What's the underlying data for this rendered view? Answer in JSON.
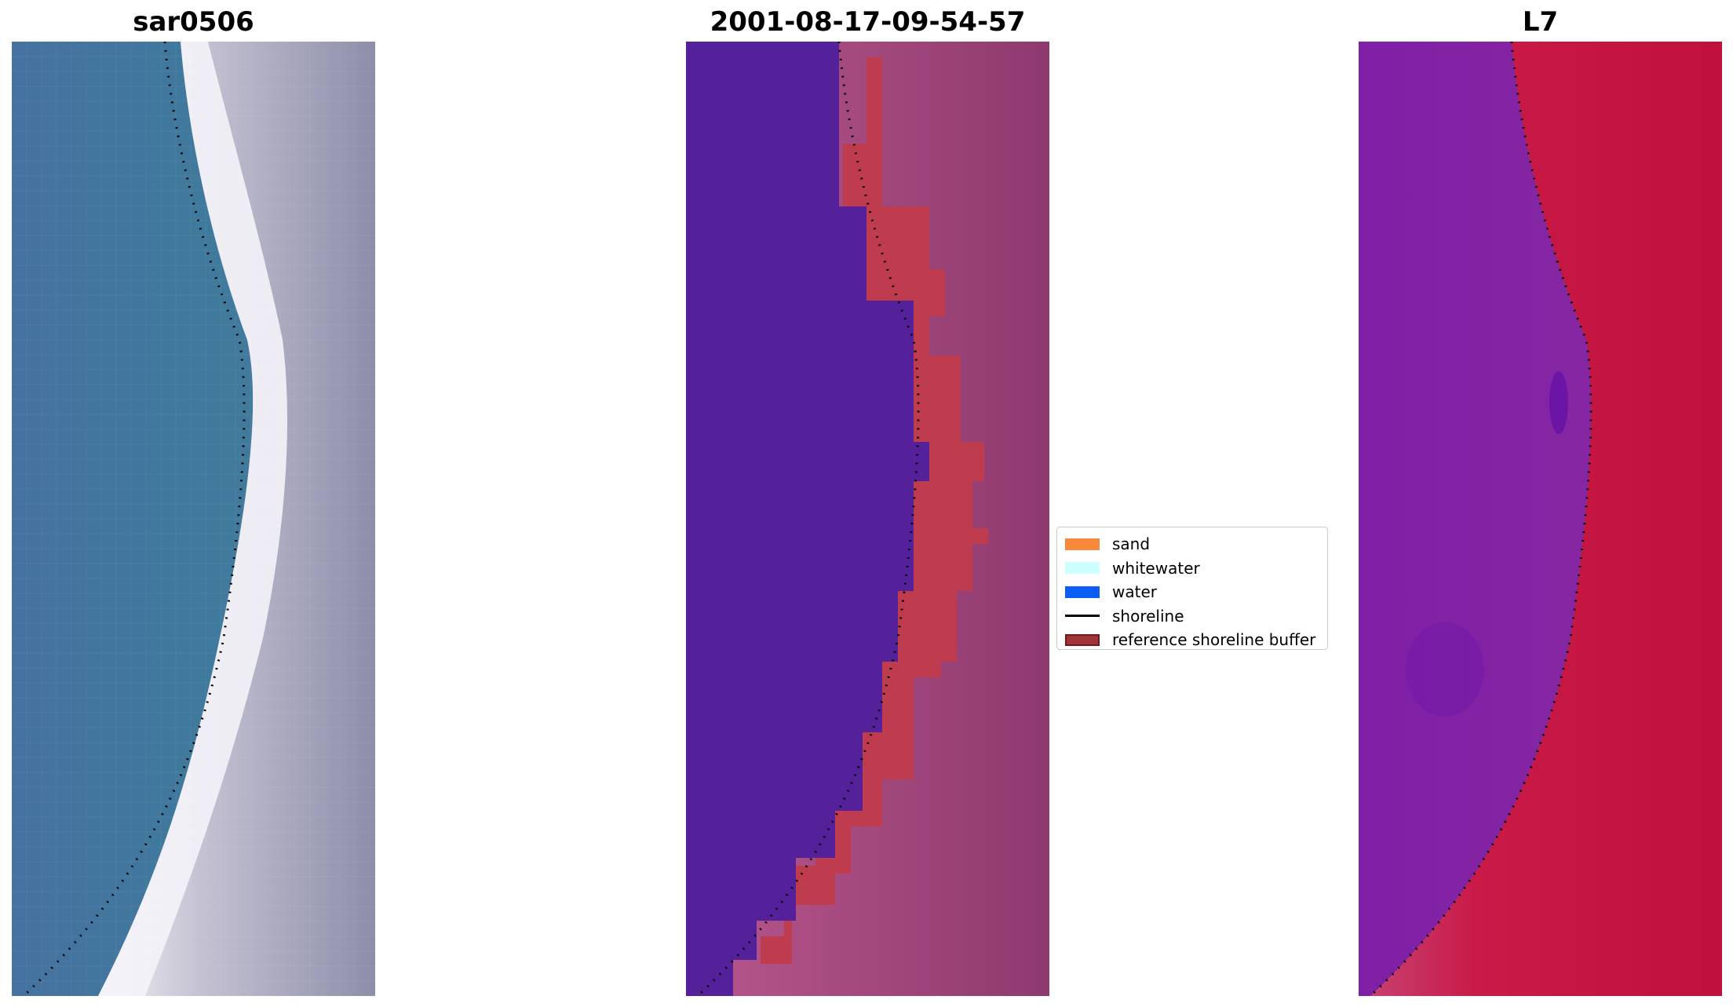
{
  "panels": [
    {
      "title": "sar0506",
      "image": "satellite RGB composite"
    },
    {
      "title": "2001-08-17-09-54-57",
      "image": "classified image with reference shoreline buffer"
    },
    {
      "title": "L7",
      "image": "water index image"
    }
  ],
  "legend": {
    "items": [
      {
        "label": "sand",
        "color": "#f6893a"
      },
      {
        "label": "whitewater",
        "color": "#ccffff"
      },
      {
        "label": "water",
        "color": "#0b5cf5"
      },
      {
        "label": "shoreline",
        "color": "#000000"
      },
      {
        "label": "reference shoreline buffer",
        "color": "#a0343a"
      }
    ]
  },
  "colors": {
    "water_class": "#54219a",
    "buffer": "#bf3c4e",
    "land_class": "#a24a82",
    "rgb_water": "#3f6f98",
    "rgb_surf": "#f1eff6",
    "index_water": "#7a22a5",
    "index_land": "#c0103d"
  }
}
